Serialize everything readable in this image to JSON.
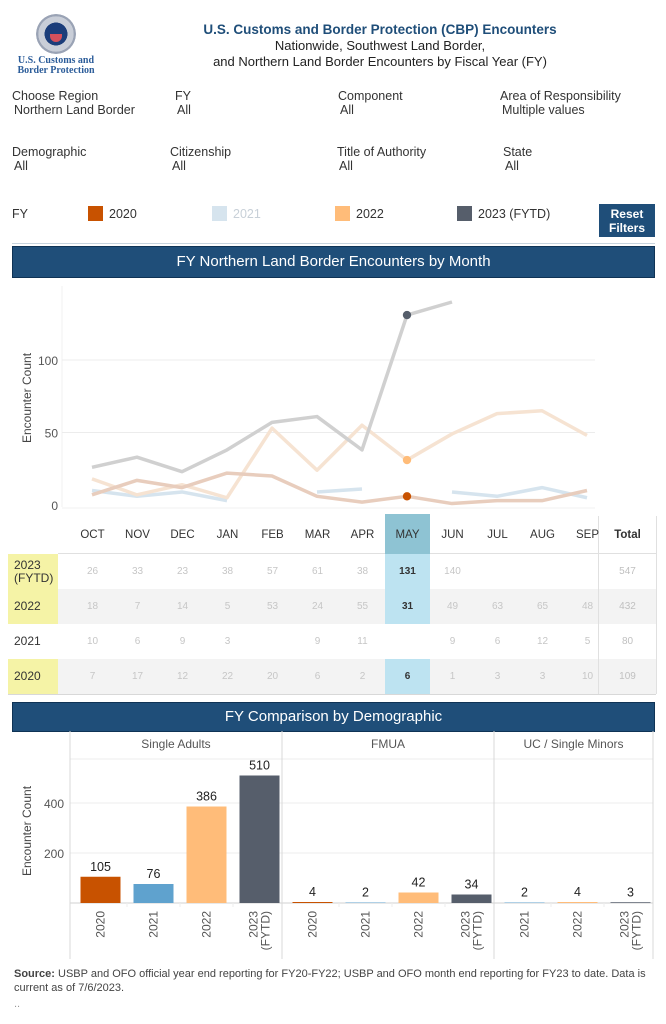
{
  "header": {
    "logo_text_line1": "U.S. Customs and",
    "logo_text_line2": "Border Protection",
    "title": "U.S. Customs and Border Protection (CBP) Encounters",
    "subtitle_line1": "Nationwide, Southwest Land Border,",
    "subtitle_line2": "and Northern Land Border Encounters by Fiscal Year (FY)"
  },
  "filters": [
    {
      "label": "Choose Region",
      "value": "Northern Land Border"
    },
    {
      "label": "FY",
      "value": "All"
    },
    {
      "label": "Component",
      "value": "All"
    },
    {
      "label": "Area of Responsibility",
      "value": "Multiple values"
    },
    {
      "label": "Demographic",
      "value": "All"
    },
    {
      "label": "Citizenship",
      "value": "All"
    },
    {
      "label": "Title of Authority",
      "value": "All"
    },
    {
      "label": "State",
      "value": "All"
    }
  ],
  "legend": {
    "label": "FY",
    "items": [
      {
        "name": "2020",
        "color": "#c85200",
        "dimmed": false
      },
      {
        "name": "2021",
        "color": "#d6e4ee",
        "dimmed": true
      },
      {
        "name": "2022",
        "color": "#ffbc79",
        "dimmed": false
      },
      {
        "name": "2023 (FYTD)",
        "color": "#565e6b",
        "dimmed": false
      }
    ]
  },
  "reset_button": {
    "line1": "Reset",
    "line2": "Filters"
  },
  "line_section_title": "FY Northern Land Border Encounters by Month",
  "bar_section_title": "FY Comparison by Demographic",
  "table": {
    "months": [
      "OCT",
      "NOV",
      "DEC",
      "JAN",
      "FEB",
      "MAR",
      "APR",
      "MAY",
      "JUN",
      "JUL",
      "AUG",
      "SEP"
    ],
    "total_header": "Total",
    "highlight_month": "MAY",
    "rows": [
      {
        "label": "2023 (FYTD)",
        "label_line1": "2023",
        "label_line2": "(FYTD)",
        "highlight": true,
        "values": [
          "26",
          "33",
          "23",
          "38",
          "57",
          "61",
          "38",
          "131",
          "140",
          "",
          "",
          ""
        ],
        "total": "547"
      },
      {
        "label": "2022",
        "label_line1": "2022",
        "label_line2": "",
        "highlight": true,
        "values": [
          "18",
          "7",
          "14",
          "5",
          "53",
          "24",
          "55",
          "31",
          "49",
          "63",
          "65",
          "48"
        ],
        "total": "432"
      },
      {
        "label": "2021",
        "label_line1": "2021",
        "label_line2": "",
        "highlight": false,
        "values": [
          "10",
          "6",
          "9",
          "3",
          "",
          "9",
          "11",
          "",
          "9",
          "6",
          "12",
          "5"
        ],
        "total": "80"
      },
      {
        "label": "2020",
        "label_line1": "2020",
        "label_line2": "",
        "highlight": true,
        "values": [
          "7",
          "17",
          "12",
          "22",
          "20",
          "6",
          "2",
          "6",
          "1",
          "3",
          "3",
          "10"
        ],
        "total": "109"
      }
    ]
  },
  "chart_data": [
    {
      "type": "line",
      "title": "FY Northern Land Border Encounters by Month",
      "xlabel": "",
      "ylabel": "Encounter Count",
      "x": [
        "OCT",
        "NOV",
        "DEC",
        "JAN",
        "FEB",
        "MAR",
        "APR",
        "MAY",
        "JUN",
        "JUL",
        "AUG",
        "SEP"
      ],
      "ylim": [
        0,
        145
      ],
      "yticks": [
        0,
        50,
        100
      ],
      "grid": true,
      "highlight_x": "MAY",
      "series": [
        {
          "name": "2023 (FYTD)",
          "color": "#565e6b",
          "values": [
            26,
            33,
            23,
            38,
            57,
            61,
            38,
            131,
            140,
            null,
            null,
            null
          ]
        },
        {
          "name": "2022",
          "color": "#ffbc79",
          "values": [
            18,
            7,
            14,
            5,
            53,
            24,
            55,
            31,
            49,
            63,
            65,
            48
          ]
        },
        {
          "name": "2021",
          "color": "#a9c6dc",
          "values": [
            10,
            6,
            9,
            3,
            null,
            9,
            11,
            null,
            9,
            6,
            12,
            5
          ]
        },
        {
          "name": "2020",
          "color": "#c85200",
          "values": [
            7,
            17,
            12,
            22,
            20,
            6,
            2,
            6,
            1,
            3,
            3,
            10
          ]
        }
      ]
    },
    {
      "type": "bar",
      "title": "FY Comparison by Demographic",
      "ylabel": "Encounter Count",
      "ylim": [
        0,
        560
      ],
      "yticks": [
        200,
        400
      ],
      "grid": true,
      "panels": [
        {
          "name": "Single Adults",
          "categories": [
            "2020",
            "2021",
            "2022",
            "2023 (FYTD)"
          ],
          "values": [
            105,
            76,
            386,
            510
          ],
          "colors": [
            "#c85200",
            "#5fa2ce",
            "#ffbc79",
            "#565e6b"
          ]
        },
        {
          "name": "FMUA",
          "categories": [
            "2020",
            "2021",
            "2022",
            "2023 (FYTD)"
          ],
          "values": [
            4,
            2,
            42,
            34
          ],
          "colors": [
            "#c85200",
            "#5fa2ce",
            "#ffbc79",
            "#565e6b"
          ]
        },
        {
          "name": "UC / Single Minors",
          "categories": [
            "2021",
            "2022",
            "2023 (FYTD)"
          ],
          "values": [
            2,
            4,
            3
          ],
          "colors": [
            "#5fa2ce",
            "#ffbc79",
            "#565e6b"
          ]
        }
      ]
    }
  ],
  "source": {
    "label": "Source:",
    "text": " USBP and OFO official year end reporting for FY20-FY22; USBP and OFO month end reporting for FY23 to date. Data is current as of 7/6/2023.",
    "footnote": ".."
  }
}
